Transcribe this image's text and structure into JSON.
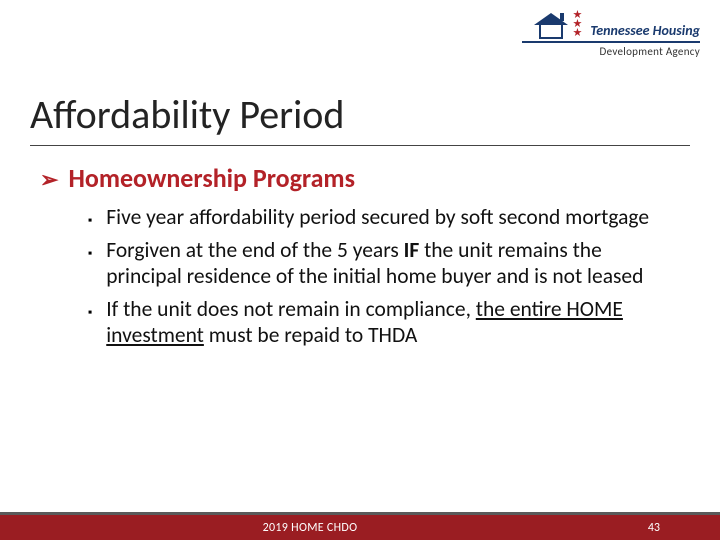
{
  "logo": {
    "line1": "Tennessee Housing",
    "line2": "Development Agency",
    "star_glyph": "★",
    "colors": {
      "navy": "#1a3a6e",
      "red": "#b32228"
    }
  },
  "title": "Affordability Period",
  "content": {
    "top_bullet": "Homeownership Programs",
    "sub_bullets": [
      {
        "text": "Five year affordability period secured by soft second mortgage"
      },
      {
        "pre": "Forgiven at the end of the 5 years ",
        "bold": "IF",
        "post": " the unit remains the principal residence of the initial home buyer and is not leased"
      },
      {
        "pre2": "If the unit does not remain in compliance, ",
        "underline": "the entire HOME investment",
        "post2": " must be repaid to THDA"
      }
    ]
  },
  "footer": {
    "center_text": "2019 HOME CHDO",
    "page_number": "43",
    "bar_color": "#9a1d22",
    "border_color": "#5a5a5a"
  },
  "glyphs": {
    "chevron": "➢",
    "square": "▪"
  }
}
